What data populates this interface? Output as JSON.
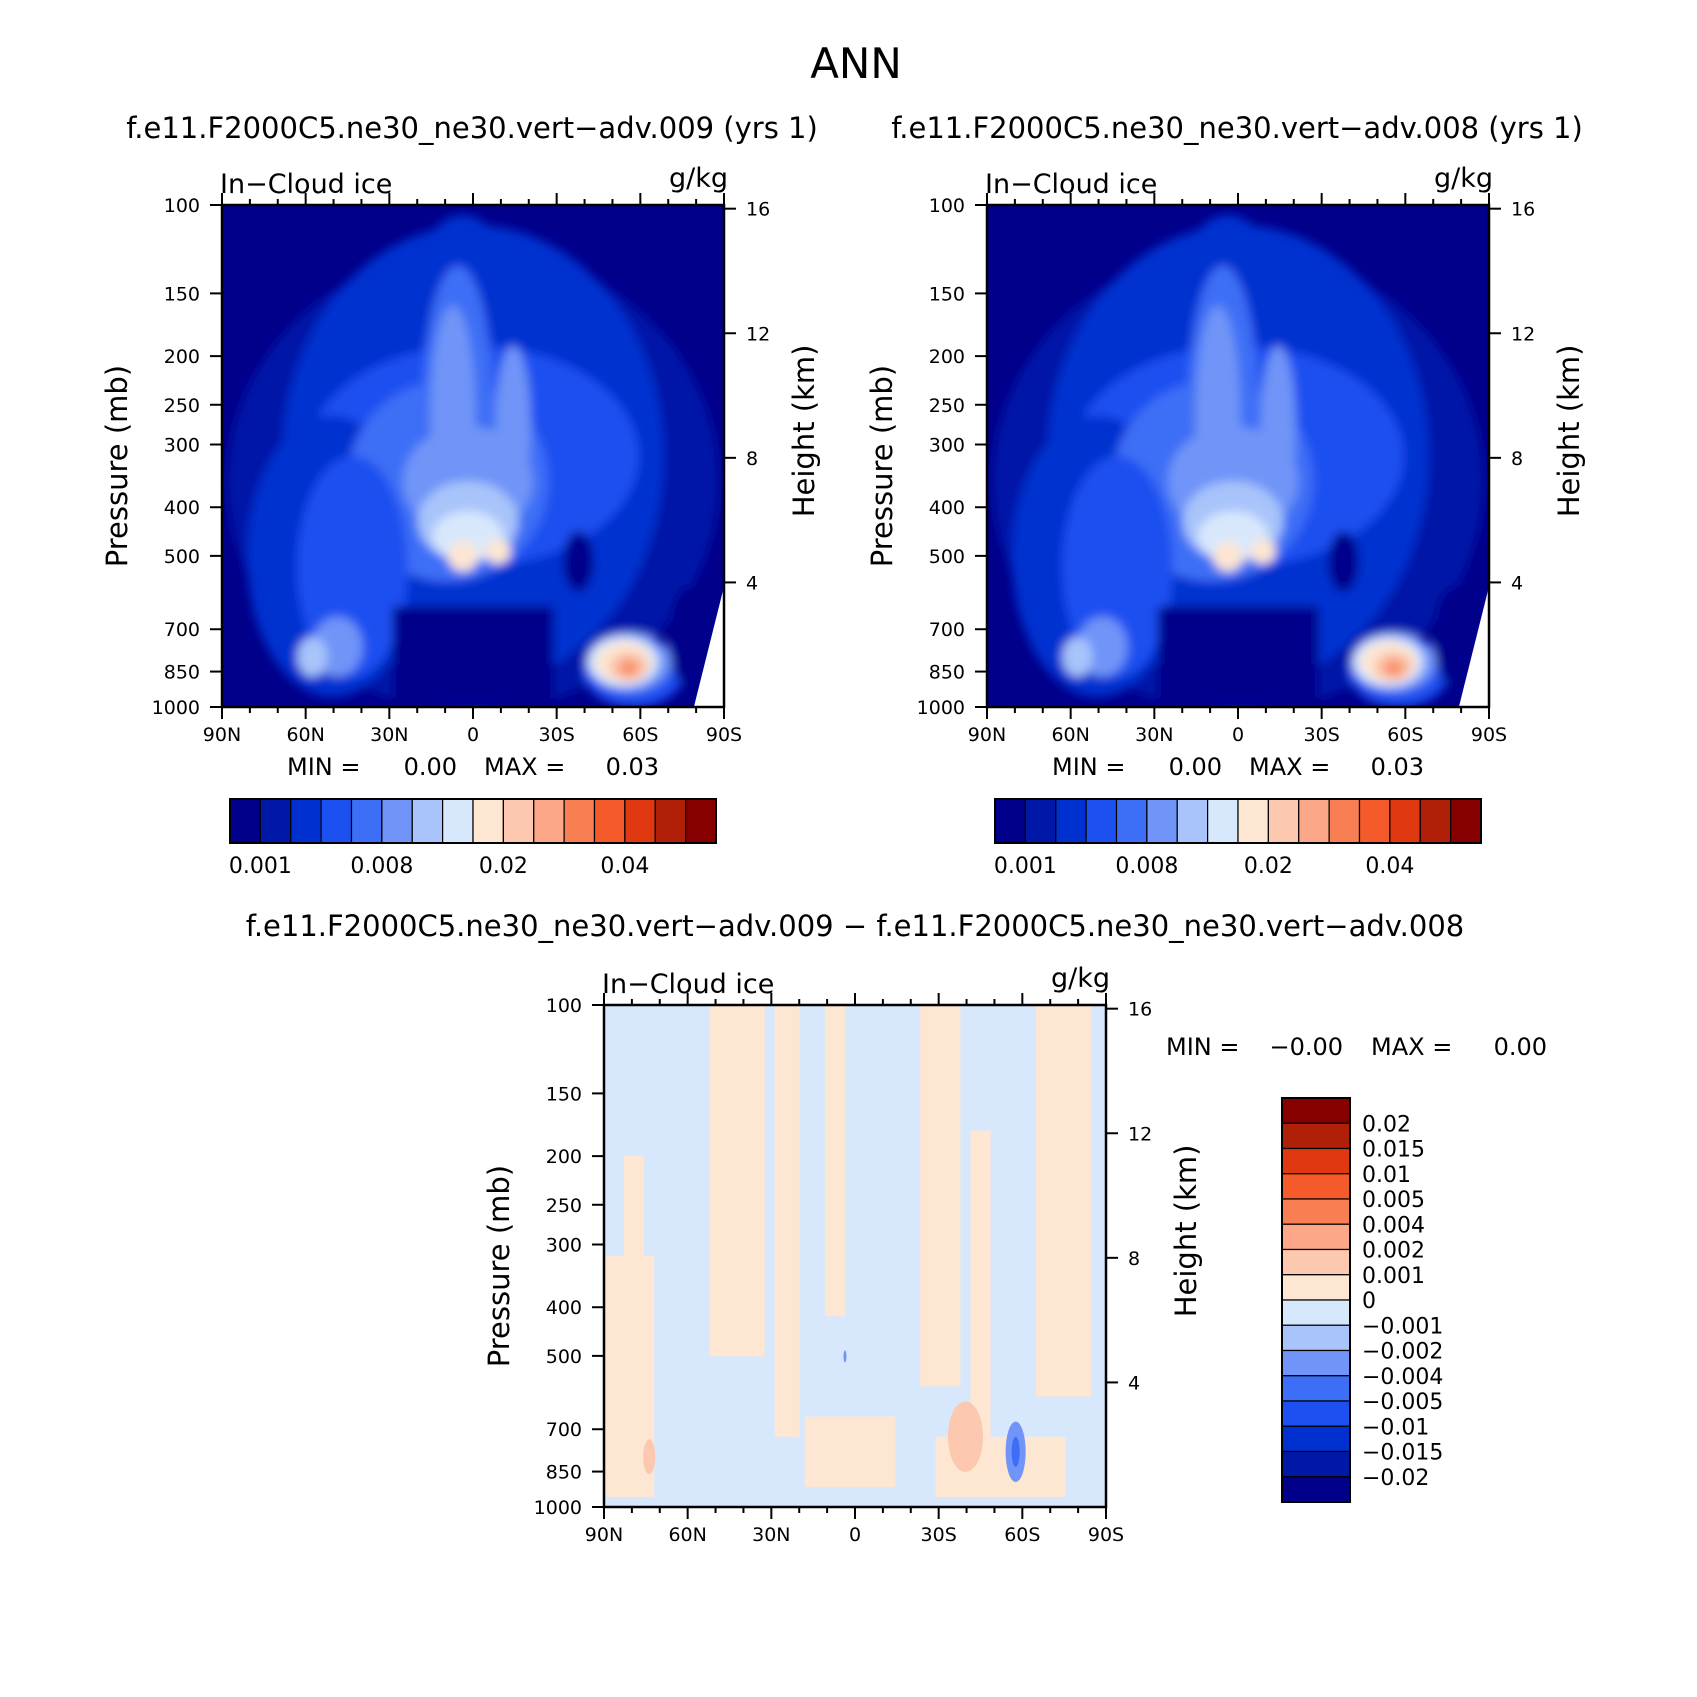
{
  "figure": {
    "title": "ANN",
    "panel_title_left": "f.e11.F2000C5.ne30_ne30.vert−adv.009 (yrs 1)",
    "panel_title_right": "f.e11.F2000C5.ne30_ne30.vert−adv.008 (yrs 1)",
    "panel_title_diff": "f.e11.F2000C5.ne30_ne30.vert−adv.009 − f.e11.F2000C5.ne30_ne30.vert−adv.008"
  },
  "chart_data": [
    {
      "type": "heatmap",
      "id": "case1",
      "variable_label": "In−Cloud ice",
      "units": "g/kg",
      "ylabel": "Pressure (mb)",
      "y2label": "Height (km)",
      "x_ticks": [
        "90N",
        "60N",
        "30N",
        "0",
        "30S",
        "60S",
        "90S"
      ],
      "x_values": [
        90,
        60,
        30,
        0,
        -30,
        -60,
        -90
      ],
      "y_ticks": [
        "100",
        "150",
        "200",
        "250",
        "300",
        "400",
        "500",
        "700",
        "850",
        "1000"
      ],
      "y_values": [
        100,
        150,
        200,
        250,
        300,
        400,
        500,
        700,
        850,
        1000
      ],
      "y_log": true,
      "y2_ticks": [
        "16",
        "12",
        "8",
        "4"
      ],
      "y2_values": [
        16,
        12,
        8,
        4
      ],
      "min_label": "MIN =",
      "min_value": "0.00",
      "max_label": "MAX =",
      "max_value": "0.03",
      "colorbar_ticks": [
        "0.001",
        "0.008",
        "0.02",
        "0.04"
      ],
      "colors": [
        "#00008b",
        "#0018a8",
        "#0030d0",
        "#1c50f0",
        "#3c6ef6",
        "#7094f8",
        "#a8c4fa",
        "#d8e8fc",
        "#fde6d2",
        "#fcc8b0",
        "#fca888",
        "#f87e54",
        "#f45a2a",
        "#e03810",
        "#b02008",
        "#860000"
      ]
    },
    {
      "type": "heatmap",
      "id": "case2",
      "variable_label": "In−Cloud ice",
      "units": "g/kg",
      "ylabel": "Pressure (mb)",
      "y2label": "Height (km)",
      "x_ticks": [
        "90N",
        "60N",
        "30N",
        "0",
        "30S",
        "60S",
        "90S"
      ],
      "x_values": [
        90,
        60,
        30,
        0,
        -30,
        -60,
        -90
      ],
      "y_ticks": [
        "100",
        "150",
        "200",
        "250",
        "300",
        "400",
        "500",
        "700",
        "850",
        "1000"
      ],
      "y_values": [
        100,
        150,
        200,
        250,
        300,
        400,
        500,
        700,
        850,
        1000
      ],
      "y_log": true,
      "y2_ticks": [
        "16",
        "12",
        "8",
        "4"
      ],
      "y2_values": [
        16,
        12,
        8,
        4
      ],
      "min_label": "MIN =",
      "min_value": "0.00",
      "max_label": "MAX =",
      "max_value": "0.03",
      "colorbar_ticks": [
        "0.001",
        "0.008",
        "0.02",
        "0.04"
      ],
      "colors": [
        "#00008b",
        "#0018a8",
        "#0030d0",
        "#1c50f0",
        "#3c6ef6",
        "#7094f8",
        "#a8c4fa",
        "#d8e8fc",
        "#fde6d2",
        "#fcc8b0",
        "#fca888",
        "#f87e54",
        "#f45a2a",
        "#e03810",
        "#b02008",
        "#860000"
      ]
    },
    {
      "type": "heatmap",
      "id": "diff",
      "variable_label": "In−Cloud ice",
      "units": "g/kg",
      "ylabel": "Pressure (mb)",
      "y2label": "Height (km)",
      "x_ticks": [
        "90N",
        "60N",
        "30N",
        "0",
        "30S",
        "60S",
        "90S"
      ],
      "x_values": [
        90,
        60,
        30,
        0,
        -30,
        -60,
        -90
      ],
      "y_ticks": [
        "100",
        "150",
        "200",
        "250",
        "300",
        "400",
        "500",
        "700",
        "850",
        "1000"
      ],
      "y_values": [
        100,
        150,
        200,
        250,
        300,
        400,
        500,
        700,
        850,
        1000
      ],
      "y_log": true,
      "y2_ticks": [
        "16",
        "12",
        "8",
        "4"
      ],
      "y2_values": [
        16,
        12,
        8,
        4
      ],
      "min_label": "MIN =",
      "min_value": "−0.00",
      "max_label": "MAX =",
      "max_value": "0.00",
      "colorbar_ticks": [
        "0.02",
        "0.015",
        "0.01",
        "0.005",
        "0.004",
        "0.002",
        "0.001",
        "0",
        "−0.001",
        "−0.002",
        "−0.004",
        "−0.005",
        "−0.01",
        "−0.015",
        "−0.02"
      ],
      "colors": [
        "#860000",
        "#b02008",
        "#e03810",
        "#f45a2a",
        "#f87e54",
        "#fca888",
        "#fcc8b0",
        "#fde6d2",
        "#d8e8fc",
        "#a8c4fa",
        "#7094f8",
        "#3c6ef6",
        "#1c50f0",
        "#0030d0",
        "#0018a8",
        "#00008b"
      ]
    }
  ]
}
